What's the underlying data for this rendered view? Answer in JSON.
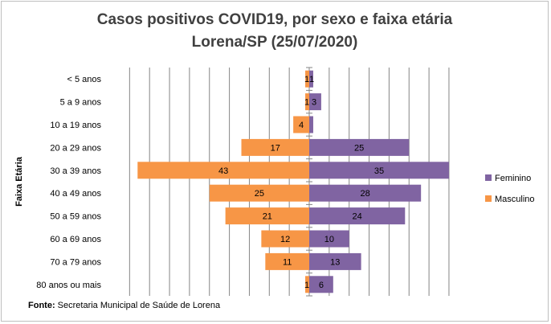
{
  "chart_data": {
    "type": "bar",
    "orientation": "horizontal",
    "title": "Casos positivos  COVID19, por sexo e faixa etária",
    "subtitle": "Lorena/SP (25/07/2020)",
    "xlabel": "",
    "ylabel": "Faixa Etária",
    "xlim": [
      -45,
      45
    ],
    "grid": true,
    "legend_position": "right",
    "categories": [
      "< 5 anos",
      "5 a 9 anos",
      "10 a 19 anos",
      "20 a 29 anos",
      "30 a 39 anos",
      "40 a 49 anos",
      "50 a 59 anos",
      "60 a 69 anos",
      "70 a 79 anos",
      "80 anos ou mais"
    ],
    "series": [
      {
        "name": "Feminino",
        "color": "#8064a2",
        "values": [
          1,
          3,
          1,
          25,
          35,
          28,
          24,
          10,
          13,
          6
        ],
        "labels": [
          "1",
          "3",
          "",
          "25",
          "35",
          "28",
          "24",
          "10",
          "13",
          "6"
        ]
      },
      {
        "name": "Masculino",
        "color": "#f79646",
        "values": [
          1,
          1,
          4,
          17,
          43,
          25,
          21,
          12,
          11,
          1
        ],
        "labels": [
          "1",
          "1",
          "4",
          "17",
          "43",
          "25",
          "21",
          "12",
          "11",
          "1"
        ]
      }
    ],
    "source_label": "Fonte:",
    "source_text": " Secretaria Municipal de Saúde de Lorena"
  }
}
